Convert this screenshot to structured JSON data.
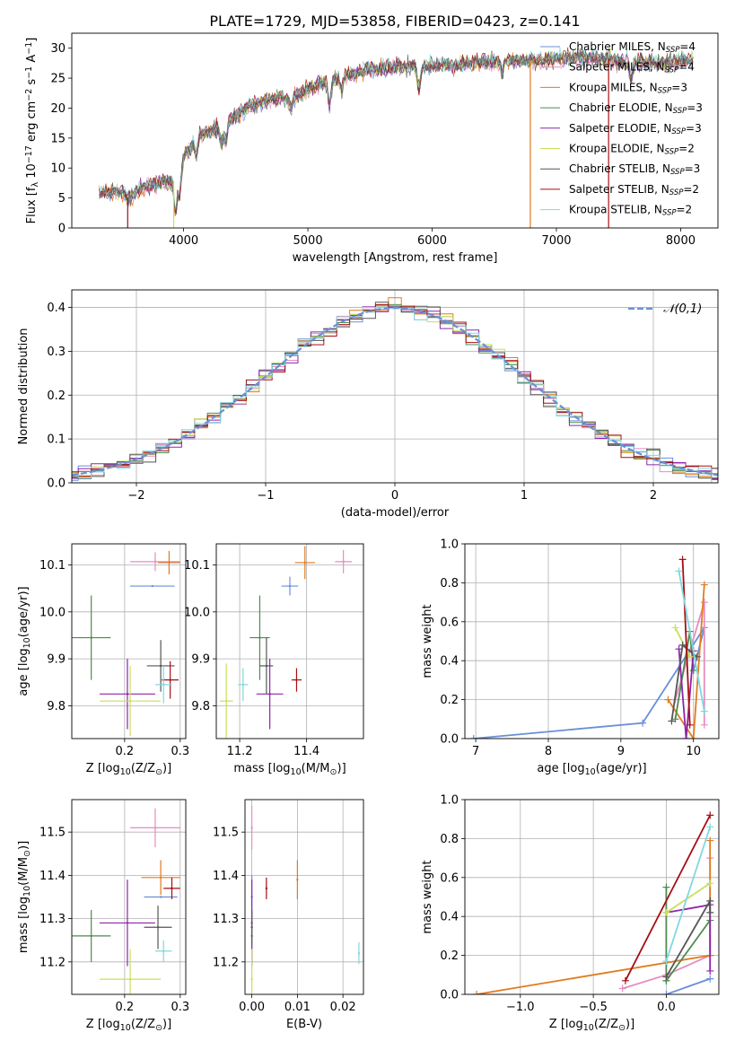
{
  "title": "PLATE=1729, MJD=53858, FIBERID=0423, z=0.141",
  "colors": {
    "Chabrier MILES": "#6a8fd8",
    "Salpeter MILES": "#e88cc0",
    "Kroupa MILES": "#e07b20",
    "Chabrier ELODIE": "#4f8a4f",
    "Salpeter ELODIE": "#8e24aa",
    "Kroupa ELODIE": "#c8e05a",
    "Chabrier STELIB": "#555555",
    "Salpeter STELIB": "#a50f15",
    "Kroupa STELIB": "#80d8e0"
  },
  "chart_data": [
    {
      "id": "spectrum",
      "type": "line",
      "xlabel": "wavelength [Angstrom, rest frame]",
      "ylabel": "Flux [f_λ 10^-17 erg cm^-2 s^-1 A^-1]",
      "xlim": [
        3100,
        8300
      ],
      "ylim": [
        0,
        32.5
      ],
      "xticks": [
        4000,
        5000,
        6000,
        7000,
        8000
      ],
      "yticks": [
        0,
        5,
        10,
        15,
        20,
        25,
        30
      ],
      "legend": {
        "placement": "top-right",
        "entries": [
          {
            "model": "Chabrier MILES",
            "label": "Chabrier MILES, N",
            "sub": "SSP",
            "tail": "=4"
          },
          {
            "model": "Salpeter MILES",
            "label": "Salpeter MILES, N",
            "sub": "SSP",
            "tail": "=4"
          },
          {
            "model": "Kroupa MILES",
            "label": "Kroupa MILES, N",
            "sub": "SSP",
            "tail": "=3"
          },
          {
            "model": "Chabrier ELODIE",
            "label": "Chabrier ELODIE, N",
            "sub": "SSP",
            "tail": "=3"
          },
          {
            "model": "Salpeter ELODIE",
            "label": "Salpeter ELODIE, N",
            "sub": "SSP",
            "tail": "=3"
          },
          {
            "model": "Kroupa ELODIE",
            "label": "Kroupa ELODIE, N",
            "sub": "SSP",
            "tail": "=2"
          },
          {
            "model": "Chabrier STELIB",
            "label": "Chabrier STELIB, N",
            "sub": "SSP",
            "tail": "=3"
          },
          {
            "model": "Salpeter STELIB",
            "label": "Salpeter STELIB, N",
            "sub": "SSP",
            "tail": "=2"
          },
          {
            "model": "Kroupa STELIB",
            "label": "Kroupa STELIB, N",
            "sub": "SSP",
            "tail": "=2"
          }
        ]
      },
      "continuum": [
        [
          3320,
          6
        ],
        [
          3500,
          6
        ],
        [
          3550,
          5
        ],
        [
          3700,
          7
        ],
        [
          3800,
          7.5
        ],
        [
          3950,
          8
        ],
        [
          4000,
          12
        ],
        [
          4100,
          15
        ],
        [
          4300,
          17
        ],
        [
          4500,
          20
        ],
        [
          4700,
          21.5
        ],
        [
          4900,
          22
        ],
        [
          5100,
          24
        ],
        [
          5300,
          25.5
        ],
        [
          5500,
          26.5
        ],
        [
          5800,
          27
        ],
        [
          6000,
          27
        ],
        [
          6300,
          27.5
        ],
        [
          6600,
          28
        ],
        [
          6900,
          28
        ],
        [
          7200,
          28.5
        ],
        [
          7500,
          28
        ],
        [
          7800,
          27.5
        ],
        [
          8100,
          28
        ]
      ],
      "absorption": [
        [
          3934,
          -5
        ],
        [
          3969,
          -4
        ],
        [
          4102,
          -2.5
        ],
        [
          4304,
          -3
        ],
        [
          4340,
          -3
        ],
        [
          4861,
          -2
        ],
        [
          5175,
          -4
        ],
        [
          5270,
          -2
        ],
        [
          5893,
          -4
        ],
        [
          6563,
          -2
        ],
        [
          7600,
          -3
        ]
      ]
    },
    {
      "id": "residual_hist",
      "type": "histogram",
      "xlabel": "(data-model)/error",
      "ylabel": "Normed distribution",
      "xlim": [
        -2.5,
        2.5
      ],
      "ylim": [
        0,
        0.44
      ],
      "xticks": [
        -2,
        -1,
        0,
        1,
        2
      ],
      "yticks": [
        0.0,
        0.1,
        0.2,
        0.3,
        0.4
      ],
      "bin_width": 0.1,
      "reference": {
        "label": "𝒩(0,1)",
        "mean": 0,
        "sigma": 1,
        "color": "#6a8fd8"
      },
      "legend": {
        "placement": "top-right"
      }
    },
    {
      "id": "age_vs_Z",
      "type": "scatter",
      "xlabel": "Z [log10(Z/Z_⊙)]",
      "ylabel": "age  [log10(age/yr)]",
      "xlim": [
        0.105,
        0.31
      ],
      "ylim": [
        9.73,
        10.145
      ],
      "xticks": [
        0.2,
        0.3
      ],
      "yticks": [
        9.8,
        9.9,
        10.0,
        10.1
      ],
      "points": [
        {
          "model": "Chabrier MILES",
          "x": 0.25,
          "y": 10.055,
          "xerr": 0.04,
          "yerr": 0.0
        },
        {
          "model": "Salpeter MILES",
          "x": 0.255,
          "y": 10.107,
          "xerr": 0.045,
          "yerr": 0.02
        },
        {
          "model": "Kroupa MILES",
          "x": 0.28,
          "y": 10.105,
          "xerr": 0.02,
          "yerr": 0.025
        },
        {
          "model": "Chabrier ELODIE",
          "x": 0.14,
          "y": 9.945,
          "xerr": 0.035,
          "yerr": 0.09
        },
        {
          "model": "Salpeter ELODIE",
          "x": 0.205,
          "y": 9.825,
          "xerr": 0.05,
          "yerr": 0.075
        },
        {
          "model": "Kroupa ELODIE",
          "x": 0.21,
          "y": 9.81,
          "xerr": 0.055,
          "yerr": 0.075
        },
        {
          "model": "Chabrier STELIB",
          "x": 0.265,
          "y": 9.885,
          "xerr": 0.025,
          "yerr": 0.055
        },
        {
          "model": "Salpeter STELIB",
          "x": 0.282,
          "y": 9.855,
          "xerr": 0.015,
          "yerr": 0.04
        },
        {
          "model": "Kroupa STELIB",
          "x": 0.27,
          "y": 9.845,
          "xerr": 0.015,
          "yerr": 0.04
        }
      ]
    },
    {
      "id": "age_vs_mass",
      "type": "scatter",
      "xlabel": "mass [log10(M/M_⊙)]",
      "ylabel": "",
      "xlim": [
        11.13,
        11.57
      ],
      "ylim": [
        9.73,
        10.145
      ],
      "xticks": [
        11.2,
        11.4
      ],
      "yticks": [
        9.8,
        9.9,
        10.0,
        10.1
      ],
      "points": [
        {
          "model": "Chabrier MILES",
          "x": 11.35,
          "y": 10.055,
          "xerr": 0.025,
          "yerr": 0.02
        },
        {
          "model": "Salpeter MILES",
          "x": 11.51,
          "y": 10.107,
          "xerr": 0.025,
          "yerr": 0.025
        },
        {
          "model": "Kroupa MILES",
          "x": 11.395,
          "y": 10.105,
          "xerr": 0.03,
          "yerr": 0.035
        },
        {
          "model": "Chabrier ELODIE",
          "x": 11.26,
          "y": 9.945,
          "xerr": 0.03,
          "yerr": 0.09
        },
        {
          "model": "Salpeter ELODIE",
          "x": 11.29,
          "y": 9.825,
          "xerr": 0.04,
          "yerr": 0.075
        },
        {
          "model": "Kroupa ELODIE",
          "x": 11.16,
          "y": 9.81,
          "xerr": 0.02,
          "yerr": 0.08
        },
        {
          "model": "Chabrier STELIB",
          "x": 11.28,
          "y": 9.885,
          "xerr": 0.02,
          "yerr": 0.06
        },
        {
          "model": "Salpeter STELIB",
          "x": 11.37,
          "y": 9.855,
          "xerr": 0.015,
          "yerr": 0.025
        },
        {
          "model": "Kroupa STELIB",
          "x": 11.21,
          "y": 9.845,
          "xerr": 0.015,
          "yerr": 0.035
        }
      ]
    },
    {
      "id": "weight_vs_age",
      "type": "line",
      "xlabel": "age  [log10(age/yr)]",
      "ylabel": "mass weight",
      "xlim": [
        6.85,
        10.35
      ],
      "ylim": [
        0,
        1
      ],
      "xticks": [
        7,
        8,
        9,
        10
      ],
      "yticks": [
        0.0,
        0.2,
        0.4,
        0.6,
        0.8,
        1.0
      ],
      "series": [
        {
          "model": "Chabrier MILES",
          "points": [
            [
              6.97,
              0.0
            ],
            [
              9.3,
              0.08
            ],
            [
              10.15,
              0.57
            ],
            [
              10.0,
              0.35
            ]
          ]
        },
        {
          "model": "Salpeter MILES",
          "points": [
            [
              9.75,
              0.2
            ],
            [
              10.15,
              0.7
            ],
            [
              10.15,
              0.07
            ]
          ]
        },
        {
          "model": "Kroupa MILES",
          "points": [
            [
              9.65,
              0.2
            ],
            [
              10.0,
              0.0
            ],
            [
              10.15,
              0.79
            ]
          ]
        },
        {
          "model": "Chabrier ELODIE",
          "points": [
            [
              9.75,
              0.1
            ],
            [
              9.95,
              0.55
            ],
            [
              10.0,
              0.35
            ]
          ]
        },
        {
          "model": "Salpeter ELODIE",
          "points": [
            [
              9.8,
              0.46
            ],
            [
              9.9,
              0.0
            ],
            [
              10.0,
              0.45
            ]
          ]
        },
        {
          "model": "Kroupa ELODIE",
          "points": [
            [
              9.75,
              0.57
            ],
            [
              9.95,
              0.42
            ]
          ]
        },
        {
          "model": "Chabrier STELIB",
          "points": [
            [
              9.7,
              0.09
            ],
            [
              9.85,
              0.48
            ],
            [
              10.05,
              0.42
            ]
          ]
        },
        {
          "model": "Salpeter STELIB",
          "points": [
            [
              9.85,
              0.92
            ],
            [
              9.95,
              0.07
            ]
          ]
        },
        {
          "model": "Kroupa STELIB",
          "points": [
            [
              9.8,
              0.86
            ],
            [
              10.15,
              0.14
            ]
          ]
        }
      ]
    },
    {
      "id": "mass_vs_Z",
      "type": "scatter",
      "xlabel": "Z [log10(Z/Z_⊙)]",
      "ylabel": "mass [log10(M/M_⊙)]",
      "xlim": [
        0.105,
        0.31
      ],
      "ylim": [
        11.125,
        11.575
      ],
      "xticks": [
        0.2,
        0.3
      ],
      "yticks": [
        11.2,
        11.3,
        11.4,
        11.5
      ],
      "points": [
        {
          "model": "Chabrier MILES",
          "x": 0.265,
          "y": 11.35,
          "xerr": 0.03,
          "yerr": 0.0
        },
        {
          "model": "Salpeter MILES",
          "x": 0.255,
          "y": 11.51,
          "xerr": 0.045,
          "yerr": 0.045
        },
        {
          "model": "Kroupa MILES",
          "x": 0.265,
          "y": 11.395,
          "xerr": 0.035,
          "yerr": 0.04
        },
        {
          "model": "Chabrier ELODIE",
          "x": 0.14,
          "y": 11.26,
          "xerr": 0.035,
          "yerr": 0.06
        },
        {
          "model": "Salpeter ELODIE",
          "x": 0.205,
          "y": 11.29,
          "xerr": 0.05,
          "yerr": 0.1
        },
        {
          "model": "Kroupa ELODIE",
          "x": 0.21,
          "y": 11.16,
          "xerr": 0.055,
          "yerr": 0.07
        },
        {
          "model": "Chabrier STELIB",
          "x": 0.26,
          "y": 11.28,
          "xerr": 0.025,
          "yerr": 0.05
        },
        {
          "model": "Salpeter STELIB",
          "x": 0.285,
          "y": 11.37,
          "xerr": 0.015,
          "yerr": 0.025
        },
        {
          "model": "Kroupa STELIB",
          "x": 0.27,
          "y": 11.225,
          "xerr": 0.015,
          "yerr": 0.025
        }
      ]
    },
    {
      "id": "mass_vs_ebv",
      "type": "scatter",
      "xlabel": "E(B-V)",
      "ylabel": "",
      "xlim": [
        -0.0015,
        0.0245
      ],
      "ylim": [
        11.125,
        11.575
      ],
      "xticks": [
        0.0,
        0.01,
        0.02
      ],
      "yticks": [
        11.2,
        11.3,
        11.4,
        11.5
      ],
      "points": [
        {
          "model": "Chabrier MILES",
          "x": 0.0,
          "y": 11.35,
          "xerr": 0.0,
          "yerr": 0.05
        },
        {
          "model": "Salpeter MILES",
          "x": 0.0,
          "y": 11.51,
          "xerr": 0.0,
          "yerr": 0.05
        },
        {
          "model": "Kroupa MILES",
          "x": 0.01,
          "y": 11.39,
          "xerr": 0.0,
          "yerr": 0.045
        },
        {
          "model": "Chabrier ELODIE",
          "x": 0.0,
          "y": 11.26,
          "xerr": 0.0,
          "yerr": 0.06
        },
        {
          "model": "Salpeter ELODIE",
          "x": 0.0,
          "y": 11.29,
          "xerr": 0.0,
          "yerr": 0.1
        },
        {
          "model": "Kroupa ELODIE",
          "x": 0.0,
          "y": 11.16,
          "xerr": 0.0,
          "yerr": 0.07
        },
        {
          "model": "Chabrier STELIB",
          "x": 0.0,
          "y": 11.28,
          "xerr": 0.0,
          "yerr": 0.04
        },
        {
          "model": "Salpeter STELIB",
          "x": 0.0032,
          "y": 11.37,
          "xerr": 0.0,
          "yerr": 0.025
        },
        {
          "model": "Kroupa STELIB",
          "x": 0.0235,
          "y": 11.22,
          "xerr": 0.0,
          "yerr": 0.025
        }
      ]
    },
    {
      "id": "weight_vs_Z",
      "type": "line",
      "xlabel": "Z [log10(Z/Z_⊙)]",
      "ylabel": "mass weight",
      "xlim": [
        -1.38,
        0.36
      ],
      "ylim": [
        0,
        1
      ],
      "xticks": [
        -1.0,
        -0.5,
        0.0
      ],
      "yticks": [
        0.0,
        0.2,
        0.4,
        0.6,
        0.8,
        1.0
      ],
      "series": [
        {
          "model": "Chabrier MILES",
          "points": [
            [
              0.0,
              0.0
            ],
            [
              0.3,
              0.08
            ]
          ]
        },
        {
          "model": "Salpeter MILES",
          "points": [
            [
              -0.3,
              0.03
            ],
            [
              0.0,
              0.1
            ],
            [
              0.3,
              0.2
            ],
            [
              0.3,
              0.7
            ]
          ]
        },
        {
          "model": "Kroupa MILES",
          "points": [
            [
              -1.3,
              0.0
            ],
            [
              0.3,
              0.2
            ],
            [
              0.3,
              0.79
            ]
          ]
        },
        {
          "model": "Chabrier ELODIE",
          "points": [
            [
              0.0,
              0.07
            ],
            [
              0.0,
              0.55
            ],
            [
              0.0,
              0.07
            ],
            [
              0.3,
              0.38
            ]
          ]
        },
        {
          "model": "Salpeter ELODIE",
          "points": [
            [
              0.0,
              0.42
            ],
            [
              0.3,
              0.46
            ],
            [
              0.3,
              0.12
            ]
          ]
        },
        {
          "model": "Kroupa ELODIE",
          "points": [
            [
              0.0,
              0.42
            ],
            [
              0.3,
              0.57
            ]
          ]
        },
        {
          "model": "Chabrier STELIB",
          "points": [
            [
              0.0,
              0.09
            ],
            [
              0.3,
              0.48
            ],
            [
              0.3,
              0.42
            ]
          ]
        },
        {
          "model": "Salpeter STELIB",
          "points": [
            [
              -0.28,
              0.07
            ],
            [
              0.3,
              0.92
            ]
          ]
        },
        {
          "model": "Kroupa STELIB",
          "points": [
            [
              0.0,
              0.17
            ],
            [
              0.3,
              0.86
            ]
          ]
        }
      ]
    }
  ]
}
